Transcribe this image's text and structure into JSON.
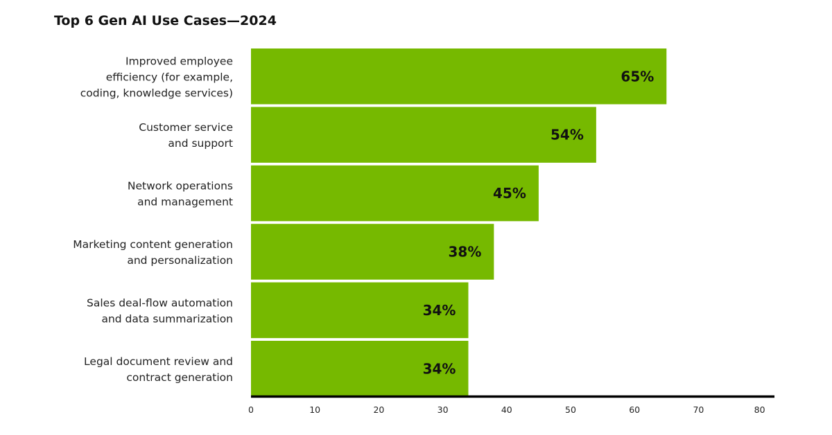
{
  "chart_data": {
    "type": "bar",
    "orientation": "horizontal",
    "title": "Top 6 Gen AI Use Cases—2024",
    "categories": [
      [
        "Improved employee",
        "efficiency (for example,",
        "coding, knowledge services)"
      ],
      [
        "Customer service",
        "and support"
      ],
      [
        "Network operations",
        "and management"
      ],
      [
        "Marketing content generation",
        "and personalization"
      ],
      [
        "Sales deal-flow automation",
        "and data summarization"
      ],
      [
        "Legal document review and",
        "contract generation"
      ]
    ],
    "values": [
      65,
      54,
      45,
      38,
      34,
      34
    ],
    "data_labels": [
      "65%",
      "54%",
      "45%",
      "38%",
      "34%",
      "34%"
    ],
    "xlim": [
      0,
      80
    ],
    "xticks": [
      "0",
      "10",
      "20",
      "30",
      "40",
      "50",
      "60",
      "70",
      "80"
    ],
    "xlabel": "",
    "ylabel": "",
    "grid": false,
    "bar_color": "#76b900"
  }
}
